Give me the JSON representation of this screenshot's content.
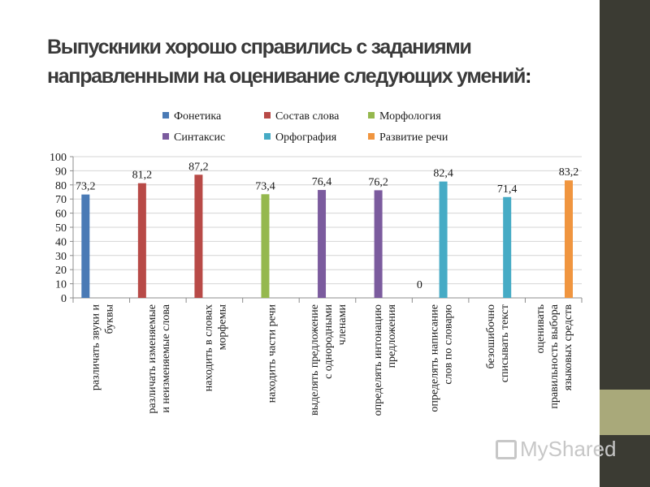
{
  "slide": {
    "title": "Выпускники хорошо справились с заданиями направленными на оценивание следующих умений",
    "title_colon": ":",
    "title_line1": "Выпускники хорошо справились с заданиями",
    "title_line2": "направленными на оценивание следующих умений",
    "watermark": "MyShared",
    "colors": {
      "strip": "#3b3b33",
      "accent": "#a9a97a"
    }
  },
  "chart_data": {
    "type": "bar",
    "ylim": [
      0,
      100
    ],
    "yticks": [
      0,
      10,
      20,
      30,
      40,
      50,
      60,
      70,
      80,
      90,
      100
    ],
    "grid": true,
    "legend_position": "top",
    "legend": [
      {
        "name": "Фонетика",
        "color": "#4a7ab5"
      },
      {
        "name": "Состав слова",
        "color": "#b84a47"
      },
      {
        "name": "Морфология",
        "color": "#95b84e"
      },
      {
        "name": "Синтаксис",
        "color": "#7b5b9e"
      },
      {
        "name": "Орфография",
        "color": "#46abc5"
      },
      {
        "name": "Развитие речи",
        "color": "#f0953f"
      }
    ],
    "categories": [
      [
        "различать звуки и",
        "буквы"
      ],
      [
        "различать изменяемые",
        "и неизменяемые слова"
      ],
      [
        "находить в словах",
        "морфемы"
      ],
      [
        "находить части речи"
      ],
      [
        "выделять предложение",
        "с однородными",
        "членами"
      ],
      [
        "определять интонацию",
        "предложения"
      ],
      [
        "определять написание",
        "слов по словарю"
      ],
      [
        "безошибочно",
        "списывать текст"
      ],
      [
        "оценивать",
        "правильность выбора",
        "языковых средств"
      ]
    ],
    "bars": [
      {
        "value": 73.2,
        "label": "73,2",
        "series": "Фонетика",
        "color": "#4a7ab5"
      },
      {
        "value": 81.2,
        "label": "81,2",
        "series": "Состав слова",
        "color": "#b84a47"
      },
      {
        "value": 87.2,
        "label": "87,2",
        "series": "Состав слова",
        "color": "#b84a47"
      },
      {
        "value": 73.4,
        "label": "73,4",
        "series": "Морфология",
        "color": "#95b84e"
      },
      {
        "value": 76.4,
        "label": "76,4",
        "series": "Синтаксис",
        "color": "#7b5b9e"
      },
      {
        "value": 76.2,
        "label": "76,2",
        "series": "Синтаксис",
        "color": "#7b5b9e"
      },
      {
        "value": 82.4,
        "label": "82,4",
        "series": "Орфография",
        "color": "#46abc5"
      },
      {
        "value": 71.4,
        "label": "71,4",
        "series": "Орфография",
        "color": "#46abc5"
      },
      {
        "value": 83.2,
        "label": "83,2",
        "series": "Развитие речи",
        "color": "#f0953f"
      }
    ],
    "extra_labels": [
      {
        "category_index": 6,
        "label": "0"
      }
    ]
  }
}
